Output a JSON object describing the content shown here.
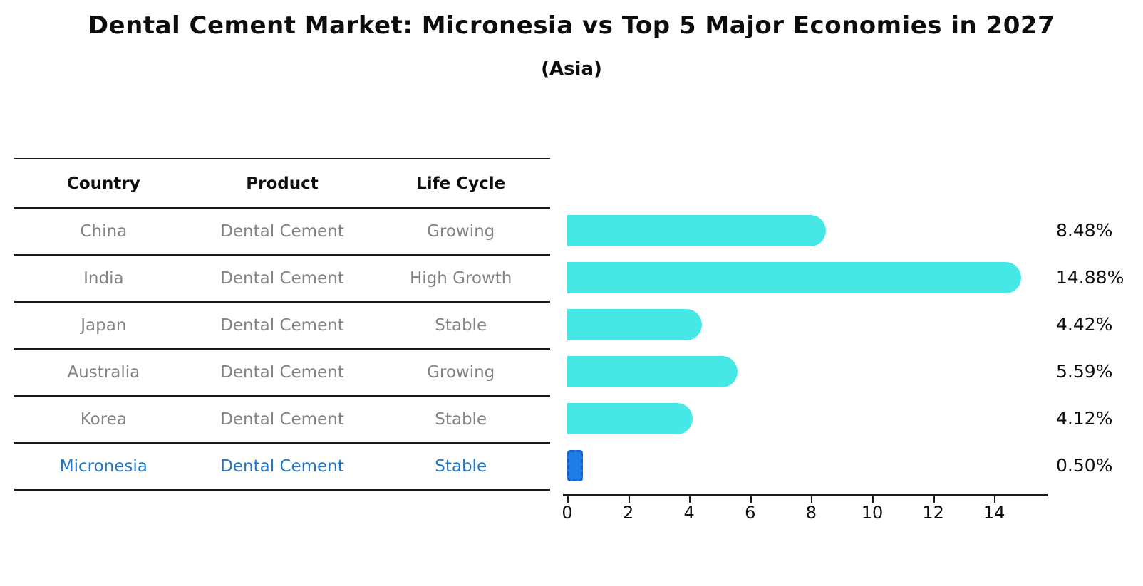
{
  "title": "Dental Cement Market: Micronesia vs Top 5 Major Economies in 2027",
  "subtitle": "(Asia)",
  "table": {
    "headers": [
      "Country",
      "Product",
      "Life Cycle"
    ],
    "rows": [
      {
        "country": "China",
        "product": "Dental Cement",
        "life_cycle": "Growing",
        "highlight": false
      },
      {
        "country": "India",
        "product": "Dental Cement",
        "life_cycle": "High Growth",
        "highlight": false
      },
      {
        "country": "Japan",
        "product": "Dental Cement",
        "life_cycle": "Stable",
        "highlight": false
      },
      {
        "country": "Australia",
        "product": "Dental Cement",
        "life_cycle": "Growing",
        "highlight": false
      },
      {
        "country": "Korea",
        "product": "Dental Cement",
        "life_cycle": "Stable",
        "highlight": false
      },
      {
        "country": "Micronesia",
        "product": "Dental Cement",
        "life_cycle": "Stable",
        "highlight": true
      }
    ]
  },
  "chart_data": {
    "type": "bar",
    "orientation": "horizontal",
    "categories": [
      "China",
      "India",
      "Japan",
      "Australia",
      "Korea",
      "Micronesia"
    ],
    "values": [
      8.48,
      14.88,
      4.42,
      5.59,
      4.12,
      0.5
    ],
    "labels": [
      "8.48%",
      "14.88%",
      "4.42%",
      "5.59%",
      "4.12%",
      "0.50%"
    ],
    "title": "",
    "xlabel": "",
    "ylabel": "",
    "xlim": [
      0,
      15.9
    ],
    "xticks": [
      0,
      2,
      4,
      6,
      8,
      10,
      12,
      14
    ],
    "grid": false,
    "legend": "none",
    "bar_color": "#46e8e6",
    "highlight_bar_color": "#1e7ce8",
    "highlight_border_color": "#1463cc",
    "highlight_index": 5,
    "value_label_color": "#0d0d0d"
  },
  "colors": {
    "table_line": "#1a1a1a",
    "table_text": "#848484",
    "header_text": "#0d0d0d",
    "highlight_text": "#2277c8"
  }
}
